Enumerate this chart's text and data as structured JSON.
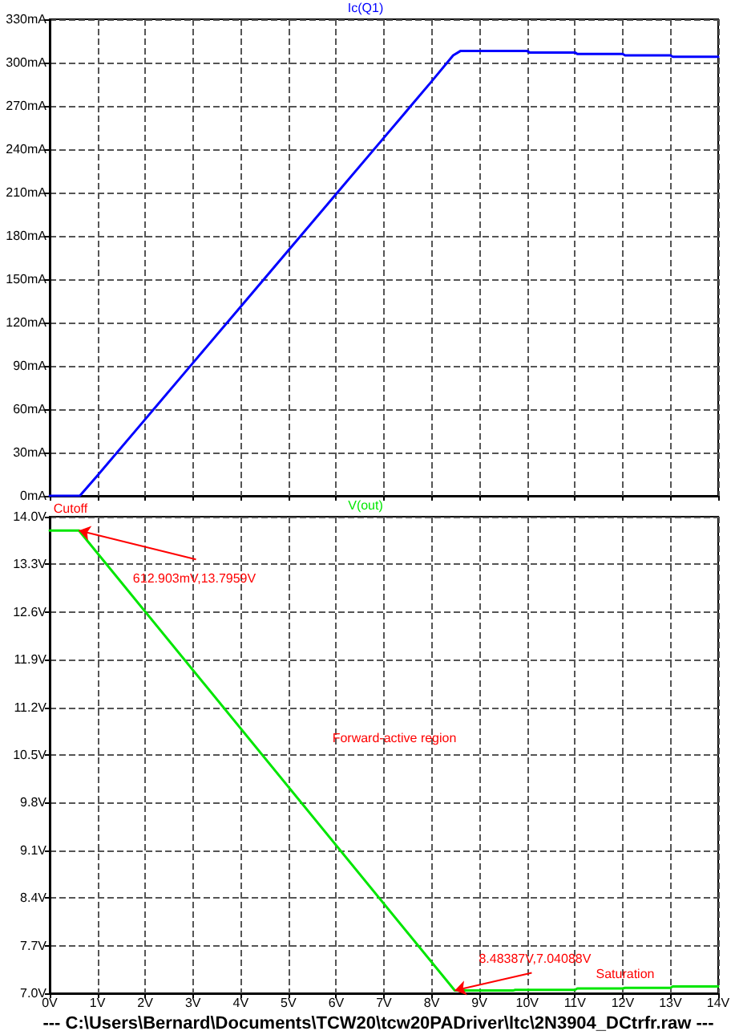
{
  "chart_data": [
    {
      "type": "line",
      "title": "Ic(Q1)",
      "xlim": [
        0,
        14
      ],
      "ylim": [
        0,
        330
      ],
      "xticks": [
        {
          "value": 0,
          "label": null
        },
        {
          "value": 1,
          "label": null
        },
        {
          "value": 2,
          "label": null
        },
        {
          "value": 3,
          "label": null
        },
        {
          "value": 4,
          "label": null
        },
        {
          "value": 5,
          "label": null
        },
        {
          "value": 6,
          "label": null
        },
        {
          "value": 7,
          "label": null
        },
        {
          "value": 8,
          "label": null
        },
        {
          "value": 9,
          "label": null
        },
        {
          "value": 10,
          "label": null
        },
        {
          "value": 11,
          "label": null
        },
        {
          "value": 12,
          "label": null
        },
        {
          "value": 13,
          "label": null
        },
        {
          "value": 14,
          "label": null
        }
      ],
      "yticks": [
        {
          "value": 0,
          "label": "0mA"
        },
        {
          "value": 30,
          "label": "30mA"
        },
        {
          "value": 60,
          "label": "60mA"
        },
        {
          "value": 90,
          "label": "90mA"
        },
        {
          "value": 120,
          "label": "120mA"
        },
        {
          "value": 150,
          "label": "150mA"
        },
        {
          "value": 180,
          "label": "180mA"
        },
        {
          "value": 210,
          "label": "210mA"
        },
        {
          "value": 240,
          "label": "240mA"
        },
        {
          "value": 270,
          "label": "270mA"
        },
        {
          "value": 300,
          "label": "300mA"
        },
        {
          "value": 330,
          "label": "330mA"
        }
      ],
      "tick_labels": "y",
      "grid": true,
      "marker": "none",
      "line_style": "solid",
      "series": [
        {
          "color": "#0000ff",
          "x": [
            0,
            0.63,
            1,
            2,
            3,
            4,
            5,
            6,
            7,
            8,
            8.45,
            8.6,
            10,
            10.05,
            11,
            11.05,
            12,
            12.05,
            13,
            13.05,
            14
          ],
          "values": [
            0,
            0,
            14,
            53,
            92,
            131,
            170,
            209,
            248,
            287,
            305,
            308,
            308,
            307,
            307,
            306,
            306,
            305,
            305,
            304,
            304
          ]
        }
      ]
    },
    {
      "type": "line",
      "title": "V(out)",
      "xlim": [
        0,
        14
      ],
      "ylim": [
        7,
        14
      ],
      "xticks": [
        {
          "value": 0,
          "label": "0V"
        },
        {
          "value": 1,
          "label": "1V"
        },
        {
          "value": 2,
          "label": "2V"
        },
        {
          "value": 3,
          "label": "3V"
        },
        {
          "value": 4,
          "label": "4V"
        },
        {
          "value": 5,
          "label": "5V"
        },
        {
          "value": 6,
          "label": "6V"
        },
        {
          "value": 7,
          "label": "7V"
        },
        {
          "value": 8,
          "label": "8V"
        },
        {
          "value": 9,
          "label": "9V"
        },
        {
          "value": 10,
          "label": "10V"
        },
        {
          "value": 11,
          "label": "11V"
        },
        {
          "value": 12,
          "label": "12V"
        },
        {
          "value": 13,
          "label": "13V"
        },
        {
          "value": 14,
          "label": "14V"
        }
      ],
      "yticks": [
        {
          "value": 7,
          "label": "7.0V"
        },
        {
          "value": 7.7,
          "label": "7.7V"
        },
        {
          "value": 8.4,
          "label": "8.4V"
        },
        {
          "value": 9.1,
          "label": "9.1V"
        },
        {
          "value": 9.8,
          "label": "9.8V"
        },
        {
          "value": 10.5,
          "label": "10.5V"
        },
        {
          "value": 11.2,
          "label": "11.2V"
        },
        {
          "value": 11.9,
          "label": "11.9V"
        },
        {
          "value": 12.6,
          "label": "12.6V"
        },
        {
          "value": 13.3,
          "label": "13.3V"
        },
        {
          "value": 14,
          "label": "14.0V"
        }
      ],
      "grid": true,
      "marker": "none",
      "line_style": "solid",
      "series": [
        {
          "color": "#00e600",
          "x": [
            0,
            0.612903,
            8.48387,
            9.7,
            9.75,
            11,
            11.05,
            12,
            12.05,
            13,
            13.05,
            14
          ],
          "values": [
            13.7959,
            13.7959,
            7.04088,
            7.04,
            7.05,
            7.05,
            7.07,
            7.07,
            7.08,
            7.08,
            7.1,
            7.1
          ]
        }
      ],
      "annotations": [
        "Cutoff",
        {
          "text": "612.903mV,13.7959V",
          "x": 0.612903,
          "y": 13.7959
        },
        "Forward-active region",
        {
          "text": "8.48387V,7.04088V",
          "x": 8.48387,
          "y": 7.04088
        },
        "Saturation",
        "--- C:\\Users\\Bernard\\Documents\\TCW20\\tcw20PADriver\\ltc\\2N3904_DCtrfr.raw ---"
      ]
    }
  ]
}
